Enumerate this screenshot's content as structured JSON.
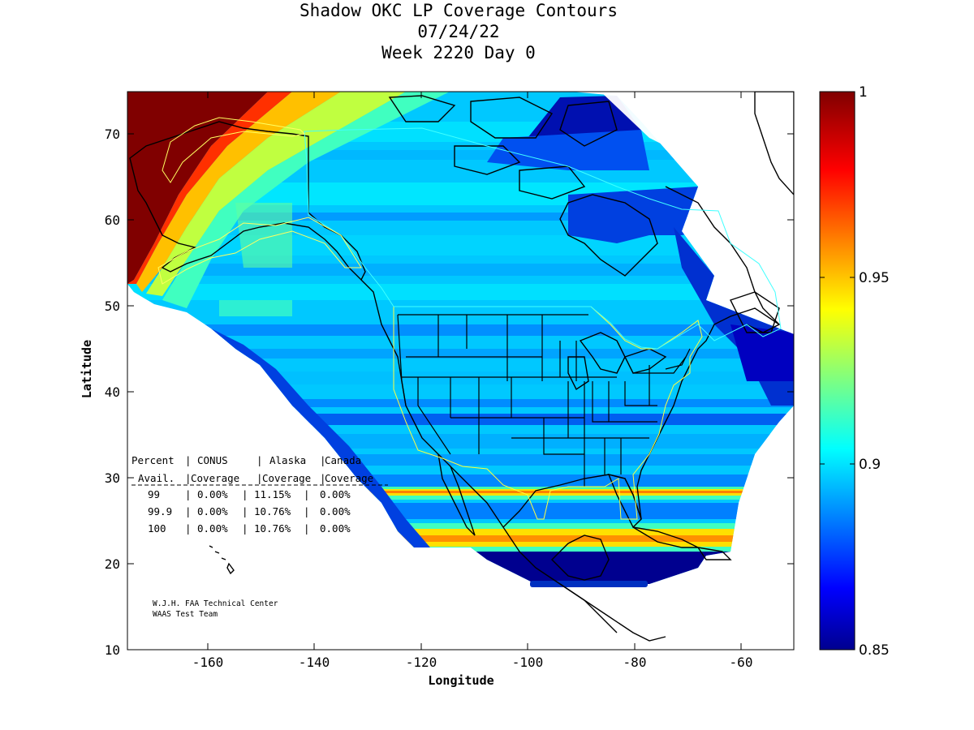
{
  "title": {
    "line1": "Shadow OKC LP Coverage Contours",
    "line2": "07/24/22",
    "line3": "Week 2220 Day 0"
  },
  "axes": {
    "xlabel": "Longitude",
    "ylabel": "Latitude",
    "xlim": [
      -175,
      -50
    ],
    "ylim": [
      10,
      75
    ],
    "x_ticks": [
      "-160",
      "-140",
      "-120",
      "-100",
      "-80",
      "-60"
    ],
    "y_ticks": [
      "10",
      "20",
      "30",
      "40",
      "50",
      "60",
      "70"
    ]
  },
  "colorbar": {
    "min": 0.85,
    "max": 1.0,
    "tick_labels": [
      "1",
      "0.95",
      "0.9",
      "0.85"
    ],
    "colormap": "jet"
  },
  "coverage_table": {
    "header1": [
      "Percent",
      "CONUS",
      "Alaska",
      "Canada"
    ],
    "header2": [
      "Avail.",
      "Coverage",
      "Coverage",
      "Coverage"
    ],
    "rows": [
      {
        "percent": "99",
        "conus": "0.00%",
        "alaska": "11.15%",
        "canada": "0.00%"
      },
      {
        "percent": "99.9",
        "conus": "0.00%",
        "alaska": "10.76%",
        "canada": "0.00%"
      },
      {
        "percent": "100",
        "conus": "0.00%",
        "alaska": "10.76%",
        "canada": "0.00%"
      }
    ]
  },
  "credits": {
    "line1": "W.J.H. FAA Technical Center",
    "line2": "WAAS Test Team"
  },
  "colors": {
    "deep_blue": "#00008f",
    "blue": "#0030d0",
    "mid_blue": "#0080ff",
    "light_blue": "#00b4ff",
    "cyan": "#00dcff",
    "aqua": "#40ffc0",
    "yellow": "#ffff00",
    "orange": "#ff8000",
    "dark_red": "#800000",
    "conus_outline": "#ffff00",
    "canada_outline": "#00ffff"
  }
}
